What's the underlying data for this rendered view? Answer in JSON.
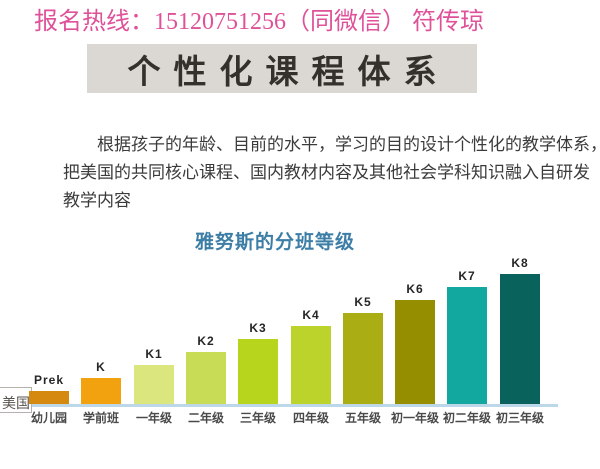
{
  "hotline": {
    "text": "报名热线：15120751256（同微信）  符传琼"
  },
  "header": {
    "title": "个性化课程体系"
  },
  "intro": {
    "lines": [
      "根据孩子的年龄、目前的水平，学习的目的设计个性化的教学体系，",
      "把美国的共同核心课程、国内教材内容及其他社会学科知识融入自研发",
      "教学内容"
    ]
  },
  "chart": {
    "title": "雅努斯的分班等级",
    "country_label": "美国"
  },
  "chart_data": {
    "type": "bar",
    "title": "雅努斯的分班等级",
    "categories": [
      "幼儿园",
      "学前班",
      "一年级",
      "二年级",
      "三年级",
      "四年级",
      "五年级",
      "初一年级",
      "初二年级",
      "初三年级"
    ],
    "bar_labels": [
      "Prek",
      "K",
      "K1",
      "K2",
      "K3",
      "K4",
      "K5",
      "K6",
      "K7",
      "K8"
    ],
    "values": [
      1,
      2,
      3,
      4,
      5,
      6,
      7,
      8,
      9,
      10
    ],
    "colors": [
      "#D6890F",
      "#F2A20E",
      "#DCE67E",
      "#C9DC55",
      "#B8D51E",
      "#BBD32A",
      "#ABAD15",
      "#948E00",
      "#12A8A0",
      "#0A625C"
    ],
    "xlabel": "",
    "ylabel": "",
    "ylim": [
      0,
      10
    ],
    "grid": false,
    "legend_position": "none",
    "axis_line_color": "#BCD7E8"
  },
  "colors": {
    "hotline_pink": "#DF5198",
    "header_bg": "#DBD8D3",
    "header_text": "#34302C",
    "chart_title_blue": "#3D7EA6",
    "axis_line": "#BCD7E8",
    "body_text": "#3B3B3B"
  }
}
